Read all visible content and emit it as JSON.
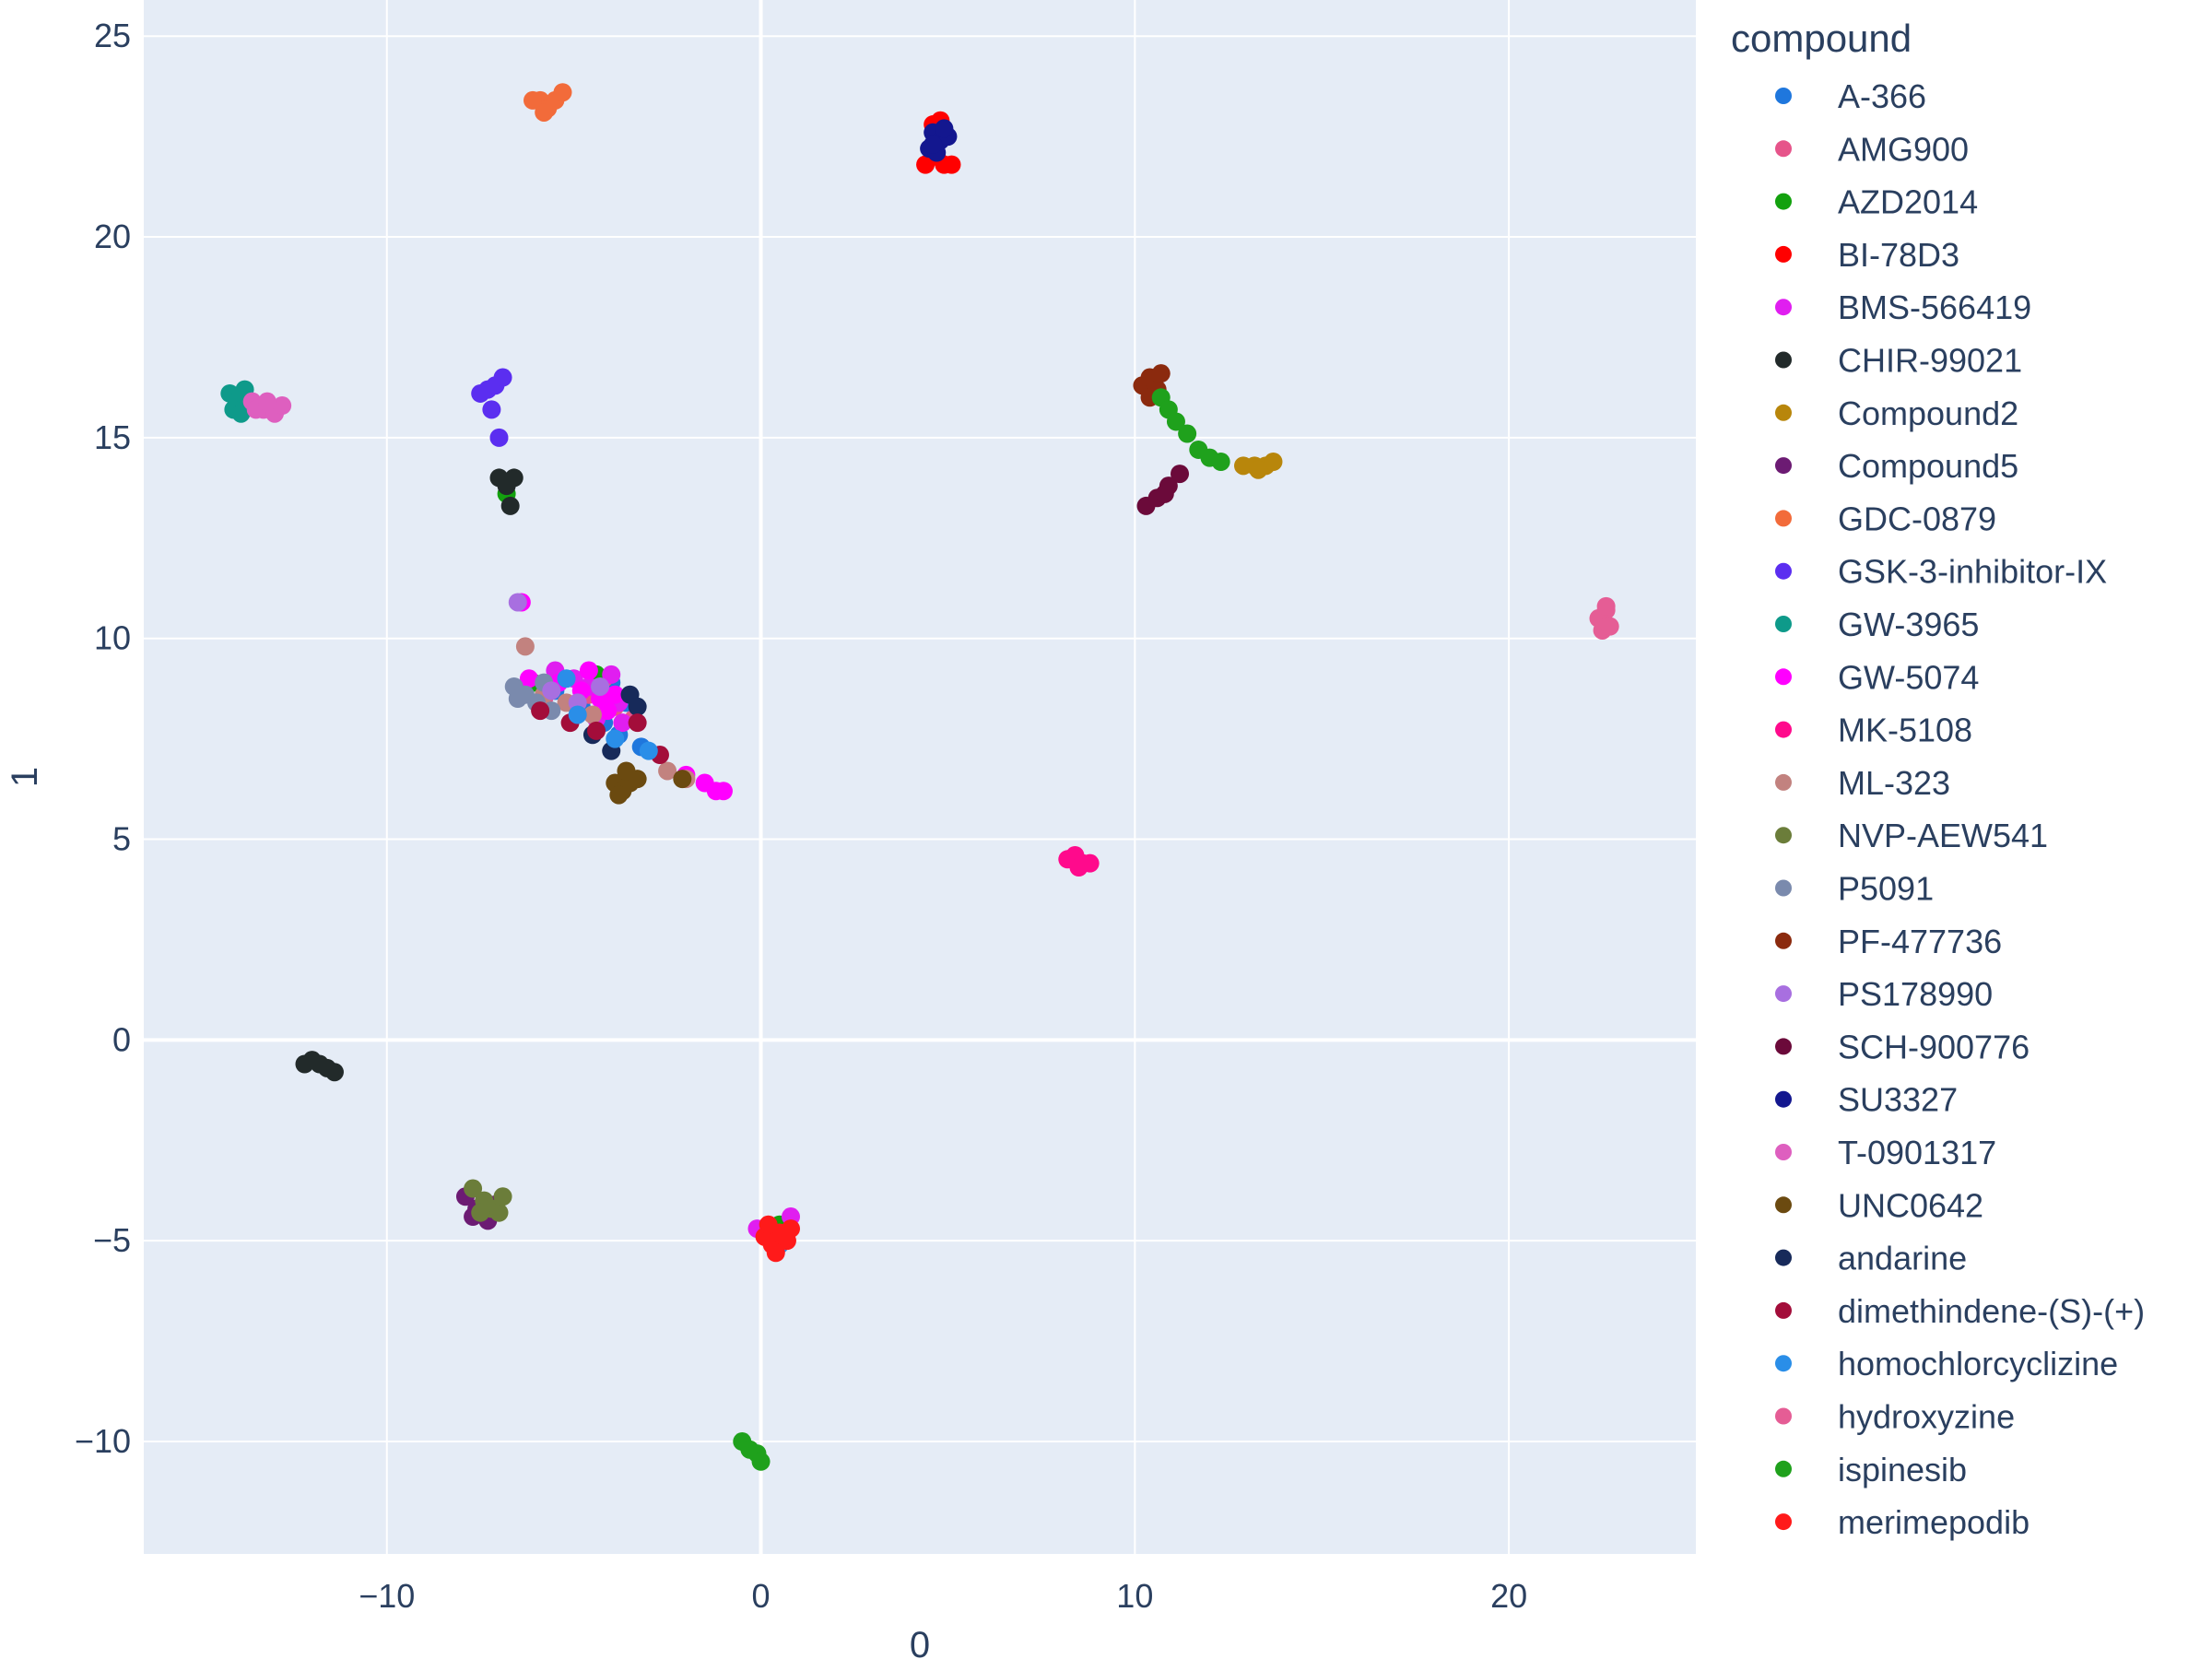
{
  "chart_data": {
    "type": "scatter",
    "title": "",
    "xlabel": "0",
    "ylabel": "1",
    "xlim": [
      -16.5,
      25
    ],
    "ylim": [
      -12.8,
      25.9
    ],
    "x_ticks": [
      -10,
      0,
      10,
      20
    ],
    "y_ticks": [
      -10,
      -5,
      0,
      5,
      10,
      15,
      20,
      25
    ],
    "x_tick_labels": [
      "−10",
      "0",
      "10",
      "20"
    ],
    "y_tick_labels": [
      "−10",
      "−5",
      "0",
      "5",
      "10",
      "15",
      "20",
      "25"
    ],
    "grid": true,
    "plot_background": "#e5ecf6",
    "grid_color": "#ffffff",
    "legend": {
      "title": "compound",
      "placement": "right"
    },
    "series": [
      {
        "name": "A-366",
        "color": "#1f77dd",
        "points": [
          [
            -6.2,
            8.9
          ],
          [
            -5.5,
            8.7
          ],
          [
            -4.8,
            8.3
          ],
          [
            -4.2,
            7.9
          ],
          [
            -3.8,
            7.6
          ],
          [
            -3.2,
            7.3
          ],
          [
            -4.0,
            8.9
          ],
          [
            -3.6,
            8.4
          ]
        ]
      },
      {
        "name": "AMG900",
        "color": "#e6548a",
        "points": [
          [
            -5.8,
            8.5
          ],
          [
            -4.6,
            8.6
          ],
          [
            -3.9,
            8.3
          ],
          [
            -3.4,
            8.0
          ],
          [
            -4.2,
            9.0
          ]
        ]
      },
      {
        "name": "AZD2014",
        "color": "#13a10e",
        "points": [
          [
            -6.1,
            8.9
          ],
          [
            -3.6,
            6.4
          ],
          [
            -6.8,
            13.6
          ],
          [
            0.5,
            -4.6
          ],
          [
            -4.4,
            9.1
          ]
        ]
      },
      {
        "name": "BI-78D3",
        "color": "#ff0000",
        "points": [
          [
            4.4,
            21.8
          ],
          [
            4.7,
            22.0
          ],
          [
            4.9,
            21.8
          ],
          [
            5.1,
            21.8
          ],
          [
            4.6,
            22.8
          ],
          [
            4.8,
            22.9
          ]
        ]
      },
      {
        "name": "BMS-566419",
        "color": "#e01ef0",
        "points": [
          [
            -5.5,
            9.2
          ],
          [
            -5.0,
            9.0
          ],
          [
            -4.6,
            8.8
          ],
          [
            -4.2,
            8.6
          ],
          [
            -3.8,
            8.4
          ],
          [
            -4.0,
            9.1
          ],
          [
            -4.4,
            8.0
          ],
          [
            -3.7,
            7.9
          ],
          [
            0.8,
            -4.4
          ],
          [
            -0.1,
            -4.7
          ]
        ]
      },
      {
        "name": "CHIR-99021",
        "color": "#222a2a",
        "points": [
          [
            -12.0,
            -0.5
          ],
          [
            -11.8,
            -0.6
          ],
          [
            -11.6,
            -0.7
          ],
          [
            -11.4,
            -0.8
          ],
          [
            -12.2,
            -0.6
          ],
          [
            -7.0,
            14.0
          ],
          [
            -6.8,
            13.8
          ],
          [
            -6.6,
            14.0
          ],
          [
            -6.7,
            13.3
          ]
        ]
      },
      {
        "name": "Compound2",
        "color": "#b8860b",
        "points": [
          [
            12.9,
            14.3
          ],
          [
            13.2,
            14.3
          ],
          [
            13.5,
            14.3
          ],
          [
            13.7,
            14.4
          ],
          [
            13.3,
            14.2
          ]
        ]
      },
      {
        "name": "Compound5",
        "color": "#6c1b73",
        "points": [
          [
            -7.9,
            -3.9
          ],
          [
            -7.6,
            -4.2
          ],
          [
            -7.3,
            -4.5
          ],
          [
            -7.7,
            -4.4
          ],
          [
            -7.1,
            -4.1
          ]
        ]
      },
      {
        "name": "GDC-0879",
        "color": "#f26b3a",
        "points": [
          [
            -5.9,
            23.4
          ],
          [
            -5.7,
            23.2
          ],
          [
            -5.5,
            23.4
          ],
          [
            -5.3,
            23.6
          ],
          [
            -5.8,
            23.1
          ],
          [
            -6.1,
            23.4
          ]
        ]
      },
      {
        "name": "GSK-3-inhibitor-IX",
        "color": "#5b2ef0",
        "points": [
          [
            -7.5,
            16.1
          ],
          [
            -7.3,
            16.2
          ],
          [
            -7.1,
            16.3
          ],
          [
            -6.9,
            16.5
          ],
          [
            -7.2,
            15.7
          ],
          [
            -7.0,
            15.0
          ]
        ]
      },
      {
        "name": "GW-3965",
        "color": "#0e9a8a",
        "points": [
          [
            -14.2,
            16.1
          ],
          [
            -14.0,
            15.9
          ],
          [
            -13.8,
            16.2
          ],
          [
            -14.1,
            15.7
          ],
          [
            -13.9,
            15.6
          ]
        ]
      },
      {
        "name": "GW-5074",
        "color": "#ff00ff",
        "points": [
          [
            -6.2,
            9.0
          ],
          [
            -5.4,
            8.9
          ],
          [
            -4.8,
            8.7
          ],
          [
            -4.3,
            8.5
          ],
          [
            -3.9,
            8.6
          ],
          [
            -4.6,
            9.2
          ],
          [
            -4.1,
            8.2
          ],
          [
            -2.0,
            6.6
          ],
          [
            -1.5,
            6.4
          ],
          [
            -1.2,
            6.2
          ],
          [
            -1.0,
            6.2
          ],
          [
            -6.4,
            10.9
          ]
        ]
      },
      {
        "name": "MK-5108",
        "color": "#ff0a8c",
        "points": [
          [
            8.2,
            4.5
          ],
          [
            8.4,
            4.6
          ],
          [
            8.6,
            4.4
          ],
          [
            8.8,
            4.4
          ],
          [
            8.5,
            4.3
          ]
        ]
      },
      {
        "name": "ML-323",
        "color": "#c2827f",
        "points": [
          [
            -6.3,
            9.8
          ],
          [
            -5.8,
            8.6
          ],
          [
            -5.2,
            8.4
          ],
          [
            -4.5,
            8.1
          ],
          [
            -2.5,
            6.7
          ],
          [
            -2.0,
            6.5
          ]
        ]
      },
      {
        "name": "NVP-AEW541",
        "color": "#6b7d3a",
        "points": [
          [
            -7.7,
            -3.7
          ],
          [
            -7.4,
            -4.0
          ],
          [
            -7.2,
            -4.2
          ],
          [
            -7.0,
            -4.3
          ],
          [
            -7.5,
            -4.3
          ],
          [
            -6.9,
            -3.9
          ]
        ]
      },
      {
        "name": "P5091",
        "color": "#7a8aad",
        "points": [
          [
            -6.6,
            8.8
          ],
          [
            -6.3,
            8.6
          ],
          [
            -6.0,
            8.4
          ],
          [
            -5.8,
            8.9
          ],
          [
            -6.5,
            8.5
          ],
          [
            -5.6,
            8.2
          ]
        ]
      },
      {
        "name": "PF-477736",
        "color": "#8b2a0e",
        "points": [
          [
            10.2,
            16.3
          ],
          [
            10.4,
            16.5
          ],
          [
            10.6,
            16.2
          ],
          [
            10.4,
            16.0
          ],
          [
            10.7,
            16.6
          ]
        ]
      },
      {
        "name": "PS178990",
        "color": "#a86fe0",
        "points": [
          [
            -6.5,
            10.9
          ],
          [
            -5.6,
            8.7
          ],
          [
            -4.9,
            8.4
          ],
          [
            -4.3,
            8.8
          ]
        ]
      },
      {
        "name": "SCH-900776",
        "color": "#6b0a3a",
        "points": [
          [
            10.3,
            13.3
          ],
          [
            10.6,
            13.5
          ],
          [
            10.9,
            13.8
          ],
          [
            11.2,
            14.1
          ],
          [
            10.8,
            13.6
          ]
        ]
      },
      {
        "name": "SU3327",
        "color": "#13178f",
        "points": [
          [
            4.5,
            22.2
          ],
          [
            4.6,
            22.6
          ],
          [
            4.8,
            22.4
          ],
          [
            5.0,
            22.5
          ],
          [
            4.7,
            22.1
          ],
          [
            4.9,
            22.7
          ],
          [
            4.6,
            22.3
          ]
        ]
      },
      {
        "name": "T-0901317",
        "color": "#de5fbf",
        "points": [
          [
            -13.6,
            15.9
          ],
          [
            -13.3,
            15.7
          ],
          [
            -13.0,
            15.6
          ],
          [
            -12.8,
            15.8
          ],
          [
            -13.5,
            15.7
          ],
          [
            -13.2,
            15.9
          ]
        ]
      },
      {
        "name": "UNC0642",
        "color": "#6b4a10",
        "points": [
          [
            -3.9,
            6.4
          ],
          [
            -3.7,
            6.2
          ],
          [
            -3.5,
            6.4
          ],
          [
            -3.3,
            6.5
          ],
          [
            -3.6,
            6.7
          ],
          [
            -2.1,
            6.5
          ],
          [
            -3.8,
            6.1
          ]
        ]
      },
      {
        "name": "andarine",
        "color": "#172a5a",
        "points": [
          [
            -4.5,
            7.6
          ],
          [
            -3.5,
            8.6
          ],
          [
            -3.3,
            8.3
          ],
          [
            -4.0,
            7.2
          ]
        ]
      },
      {
        "name": "dimethindene-(S)-(+)",
        "color": "#a30d3a",
        "points": [
          [
            -5.9,
            8.2
          ],
          [
            -5.1,
            7.9
          ],
          [
            -4.4,
            7.7
          ],
          [
            -3.3,
            7.9
          ],
          [
            -2.7,
            7.1
          ]
        ]
      },
      {
        "name": "homochlorcyclizine",
        "color": "#2a8ee8",
        "points": [
          [
            -5.2,
            9.0
          ],
          [
            -4.9,
            8.1
          ],
          [
            -3.9,
            7.5
          ],
          [
            -3.0,
            7.2
          ],
          [
            0.5,
            -5.1
          ]
        ]
      },
      {
        "name": "hydroxyzine",
        "color": "#e55d95",
        "points": [
          [
            22.4,
            10.5
          ],
          [
            22.6,
            10.7
          ],
          [
            22.5,
            10.2
          ],
          [
            22.7,
            10.3
          ],
          [
            22.6,
            10.8
          ]
        ]
      },
      {
        "name": "ispinesib",
        "color": "#1fa11c",
        "points": [
          [
            10.7,
            16.0
          ],
          [
            10.9,
            15.7
          ],
          [
            11.1,
            15.4
          ],
          [
            11.4,
            15.1
          ],
          [
            11.7,
            14.7
          ],
          [
            12.0,
            14.5
          ],
          [
            12.3,
            14.4
          ],
          [
            -0.5,
            -10.0
          ],
          [
            -0.3,
            -10.2
          ],
          [
            -0.1,
            -10.3
          ],
          [
            0.0,
            -10.5
          ]
        ]
      },
      {
        "name": "merimepodib",
        "color": "#ff1a1a",
        "points": [
          [
            0.1,
            -4.9
          ],
          [
            0.3,
            -5.1
          ],
          [
            0.5,
            -4.8
          ],
          [
            0.7,
            -5.0
          ],
          [
            0.4,
            -5.3
          ],
          [
            0.8,
            -4.7
          ],
          [
            0.2,
            -4.6
          ]
        ]
      }
    ]
  }
}
